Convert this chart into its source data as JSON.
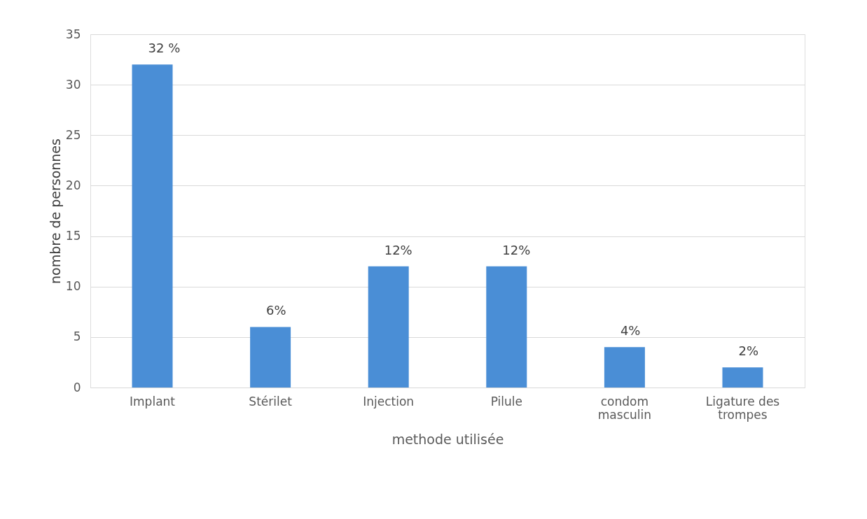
{
  "chart_data": {
    "type": "bar",
    "xlabel": "methode utilisée",
    "ylabel": "nombre de personnes",
    "categories": [
      "Implant",
      "Stérilet",
      "Injection",
      "Pilule",
      "condom masculin",
      "Ligature des trompes"
    ],
    "values": [
      32,
      6,
      12,
      12,
      4,
      2
    ],
    "value_labels": [
      "32 %",
      "6%",
      "12%",
      "12%",
      "4%",
      "2%"
    ],
    "color": "#4a8ed6",
    "ylim": [
      0,
      35
    ],
    "yticks": [
      0,
      5,
      10,
      15,
      20,
      25,
      30,
      35
    ],
    "grid": "y"
  }
}
